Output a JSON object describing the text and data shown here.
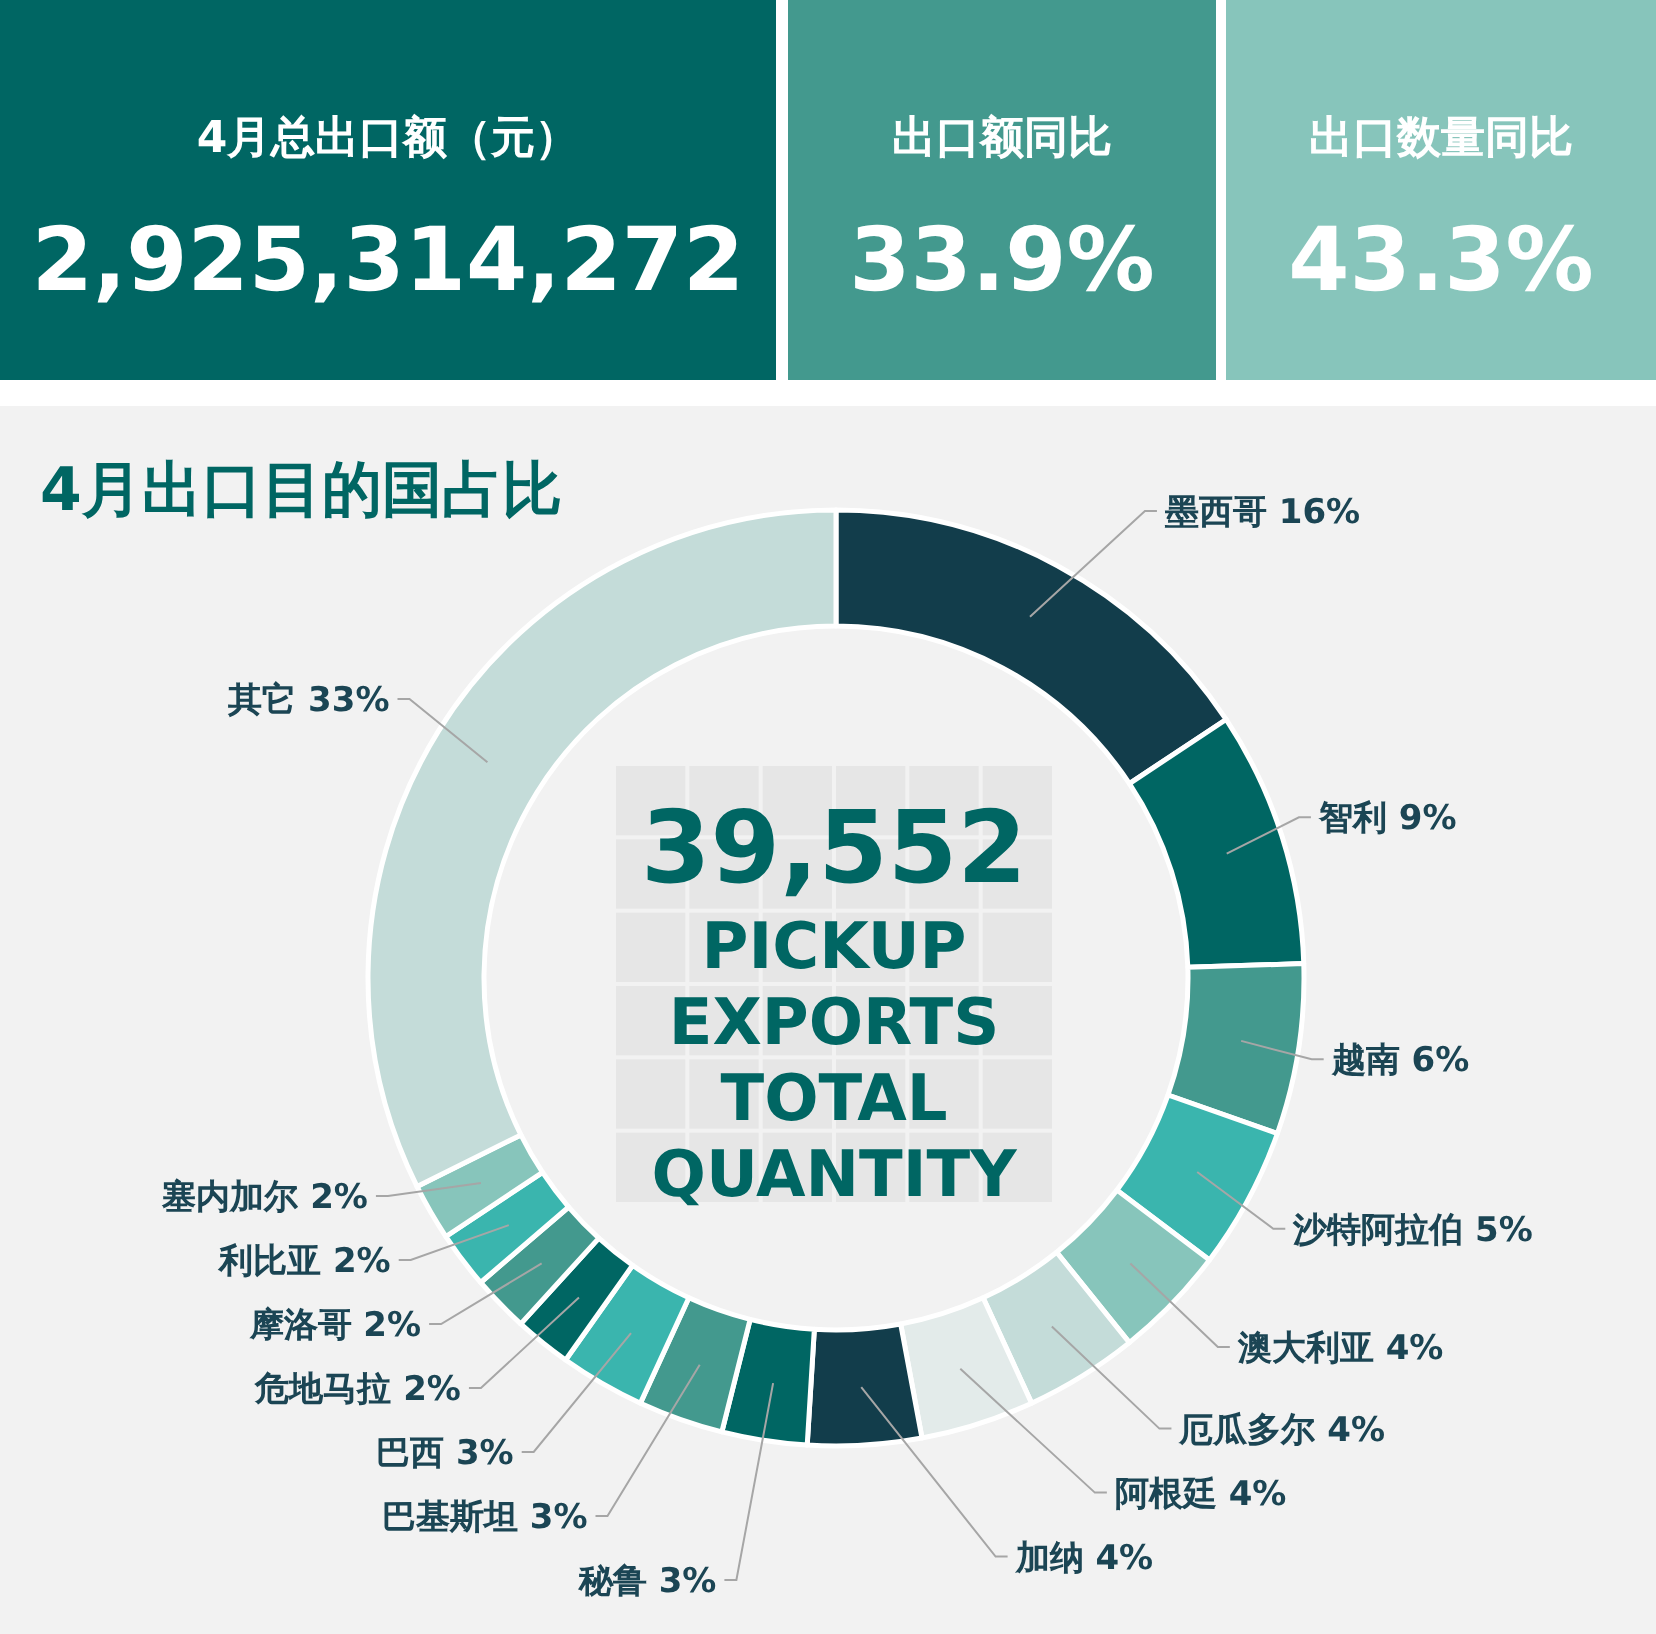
{
  "chart_data": [
    {
      "type": "other",
      "title": "4月总出口额（元）",
      "annotations": [
        "2,925,314,272"
      ]
    },
    {
      "type": "other",
      "title": "出口额同比",
      "annotations": [
        "33.9%"
      ]
    },
    {
      "type": "other",
      "title": "出口数量同比",
      "annotations": [
        "43.3%"
      ]
    },
    {
      "type": "donut",
      "title": "4月出口目的国占比",
      "categories": [
        "墨西哥",
        "智利",
        "越南",
        "沙特阿拉伯",
        "澳大利亚",
        "厄瓜多尔",
        "阿根廷",
        "加纳",
        "秘鲁",
        "巴基斯坦",
        "巴西",
        "危地马拉",
        "摩洛哥",
        "利比亚",
        "塞内加尔",
        "其它"
      ],
      "values": [
        16,
        9,
        6,
        5,
        4,
        4,
        4,
        4,
        3,
        3,
        3,
        2,
        2,
        2,
        2,
        33
      ],
      "value_labels": [
        "16%",
        "9%",
        "6%",
        "5%",
        "4%",
        "4%",
        "4%",
        "4%",
        "3%",
        "3%",
        "3%",
        "2%",
        "2%",
        "2%",
        "2%",
        "33%"
      ],
      "colors": [
        "#123d4b",
        "#006663",
        "#43998e",
        "#3ab5ae",
        "#87c5bb",
        "#c4dcd9",
        "#e3ebea",
        "#123d4b",
        "#006663",
        "#43998e",
        "#3ab5ae",
        "#006663",
        "#43998e",
        "#3ab5ae",
        "#87c5bb",
        "#c4dcd9"
      ],
      "annotations": [
        "39,552",
        "PICKUP EXPORTS TOTAL QUANTITY"
      ]
    }
  ]
}
